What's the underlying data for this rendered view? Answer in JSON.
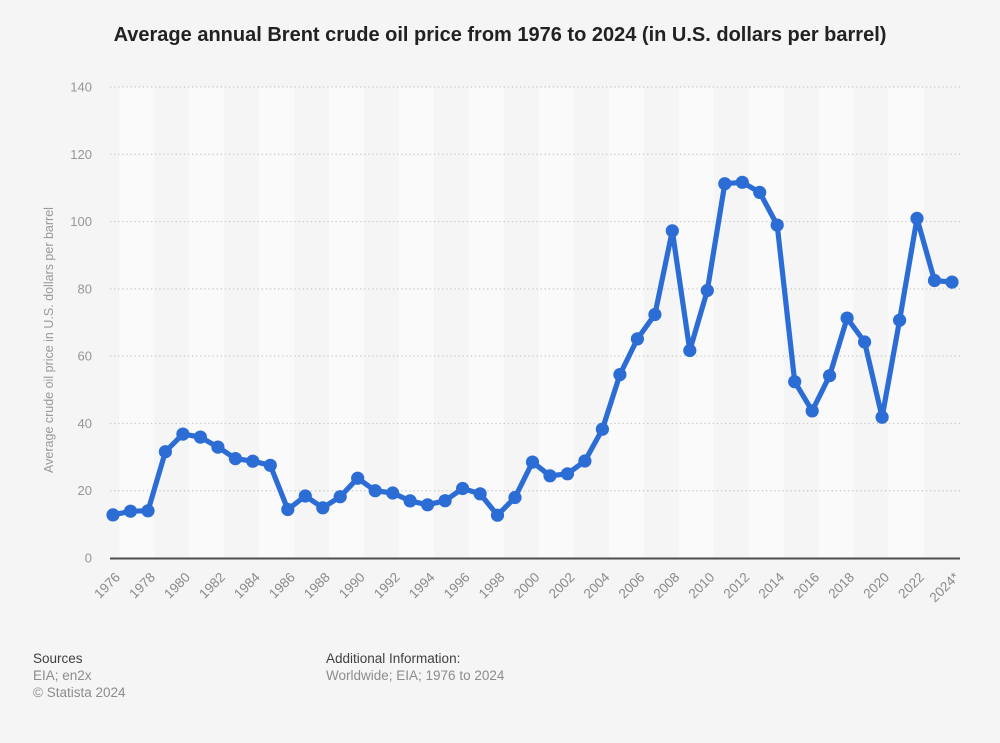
{
  "title": "Average annual Brent crude oil price from 1976 to 2024 (in U.S. dollars per barrel)",
  "chart_data": {
    "type": "line",
    "title": "Average annual Brent crude oil price from 1976 to 2024 (in U.S. dollars per barrel)",
    "ylabel": "Average crude oil price in U.S. dollars per barrel",
    "xlabel": "",
    "ylim": [
      0,
      140
    ],
    "y_ticks": [
      0,
      20,
      40,
      60,
      80,
      100,
      120,
      140
    ],
    "grid": "horizontal-dotted",
    "legend": "none",
    "plot_stripes": true,
    "years": [
      1976,
      1977,
      1978,
      1979,
      1980,
      1981,
      1982,
      1983,
      1984,
      1985,
      1986,
      1987,
      1988,
      1989,
      1990,
      1991,
      1992,
      1993,
      1994,
      1995,
      1996,
      1997,
      1998,
      1999,
      2000,
      2001,
      2002,
      2003,
      2004,
      2005,
      2006,
      2007,
      2008,
      2009,
      2010,
      2011,
      2012,
      2013,
      2014,
      2015,
      2016,
      2017,
      2018,
      2019,
      2020,
      2021,
      2022,
      2023,
      2024
    ],
    "values": [
      12.8,
      13.92,
      14.02,
      31.61,
      36.83,
      35.93,
      32.97,
      29.55,
      28.78,
      27.56,
      14.43,
      18.44,
      14.92,
      18.23,
      23.73,
      20.0,
      19.32,
      16.97,
      15.82,
      17.02,
      20.67,
      19.09,
      12.72,
      17.97,
      28.5,
      24.44,
      25.02,
      28.83,
      38.27,
      54.52,
      65.14,
      72.39,
      97.26,
      61.67,
      79.5,
      111.26,
      111.67,
      108.66,
      98.95,
      52.39,
      43.73,
      54.19,
      71.31,
      64.21,
      41.84,
      70.68,
      100.93,
      82.49,
      82.0
    ],
    "x_tick_labels": [
      "1976",
      "1978",
      "1980",
      "1982",
      "1984",
      "1986",
      "1988",
      "1990",
      "1992",
      "1994",
      "1996",
      "1998",
      "2000",
      "2002",
      "2004",
      "2006",
      "2008",
      "2010",
      "2012",
      "2014",
      "2016",
      "2018",
      "2020",
      "2022",
      "2024*"
    ],
    "colors": {
      "line": "#2c6dd5",
      "marker": "#2c6dd5",
      "stripe_light": "#fafafa",
      "background": "#f5f5f5",
      "gridline": "#c8c8c8",
      "axis_line": "#4d4d4d",
      "tick_text": "#969696",
      "x_tick_text": "#8a8a8a",
      "axis_title_text": "#999999"
    }
  },
  "footer": {
    "sources_label": "Sources",
    "sources_value": "EIA; en2x",
    "copyright": "© Statista 2024",
    "additional_info_label": "Additional Information:",
    "additional_info_value": "Worldwide; EIA; 1976 to 2024"
  }
}
